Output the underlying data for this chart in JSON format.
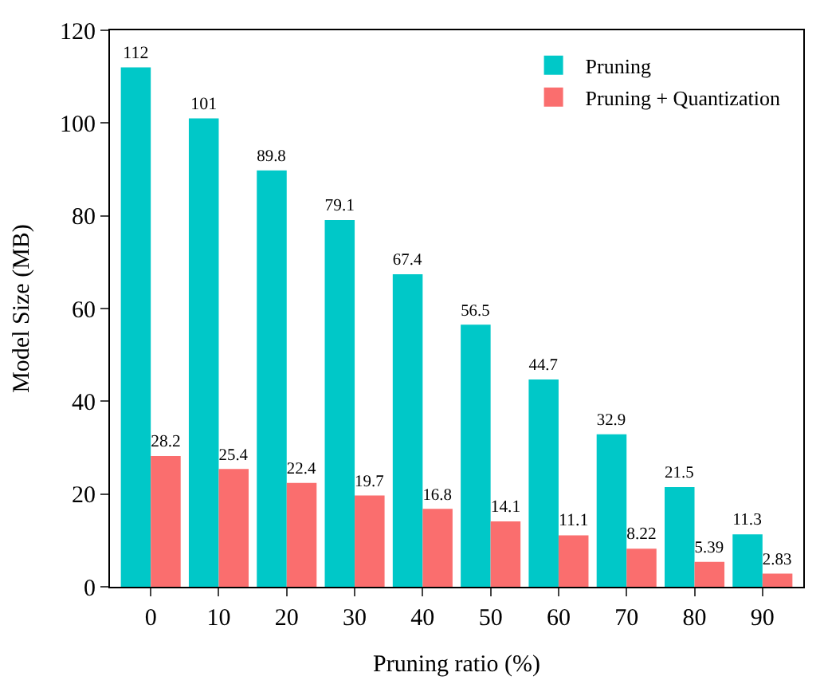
{
  "chart_data": {
    "type": "bar",
    "xlabel": "Pruning ratio (%)",
    "ylabel": "Model Size (MB)",
    "categories": [
      "0",
      "10",
      "20",
      "30",
      "40",
      "50",
      "60",
      "70",
      "80",
      "90"
    ],
    "series": [
      {
        "name": "Pruning",
        "color": "#00c8c8",
        "values": [
          112,
          101,
          89.8,
          79.1,
          67.4,
          56.5,
          44.7,
          32.9,
          21.5,
          11.3
        ]
      },
      {
        "name": "Pruning + Quantization",
        "color": "#fa6e6e",
        "values": [
          28.2,
          25.4,
          22.4,
          19.7,
          16.8,
          14.1,
          11.1,
          8.22,
          5.39,
          2.83
        ]
      }
    ],
    "ylim": [
      0,
      120
    ],
    "yticks": [
      0,
      20,
      40,
      60,
      80,
      100,
      120
    ],
    "data_labels": true,
    "legend": "top right"
  }
}
